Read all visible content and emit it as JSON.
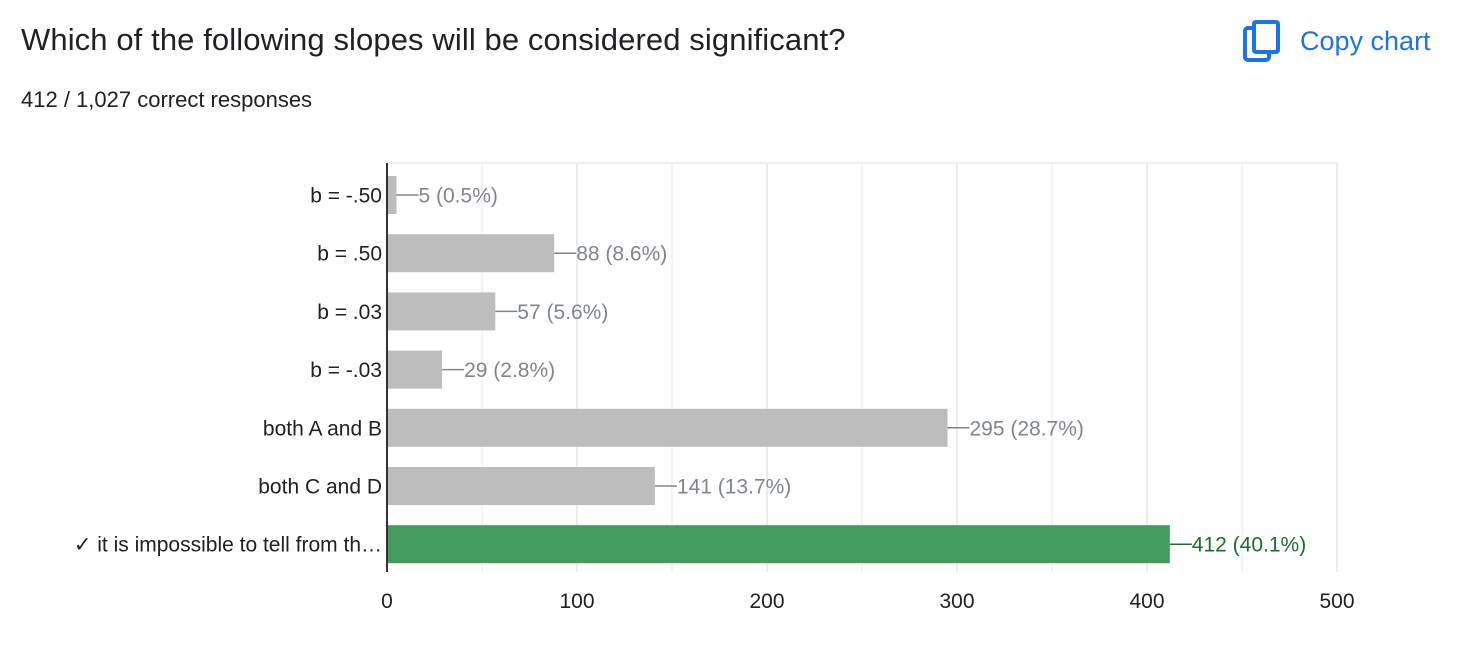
{
  "header": {
    "title": "Which of the following slopes will be considered significant?",
    "subtitle": "412 / 1,027 correct responses",
    "copy_label": "Copy chart",
    "copy_icon": "copy-icon"
  },
  "colors": {
    "bar_default": "#bdbdbd",
    "bar_correct": "#439b5f",
    "label_default": "#80868b",
    "label_correct": "#1e6b35",
    "accent": "#1a73e8"
  },
  "chart_data": {
    "type": "bar",
    "orientation": "horizontal",
    "categories": [
      "b = -.50",
      "b = .50",
      "b = .03",
      "b = -.03",
      "both A and B",
      "both C and D",
      "✓ it is impossible to tell from th…"
    ],
    "values": [
      5,
      88,
      57,
      29,
      295,
      141,
      412
    ],
    "data_labels": [
      "5 (0.5%)",
      "88 (8.6%)",
      "57 (5.6%)",
      "29 (2.8%)",
      "295 (28.7%)",
      "141 (13.7%)",
      "412 (40.1%)"
    ],
    "correct": [
      false,
      false,
      false,
      false,
      false,
      false,
      true
    ],
    "xlim": [
      0,
      500
    ],
    "xticks": [
      0,
      100,
      200,
      300,
      400,
      500
    ],
    "grid": true,
    "legend": "none"
  }
}
